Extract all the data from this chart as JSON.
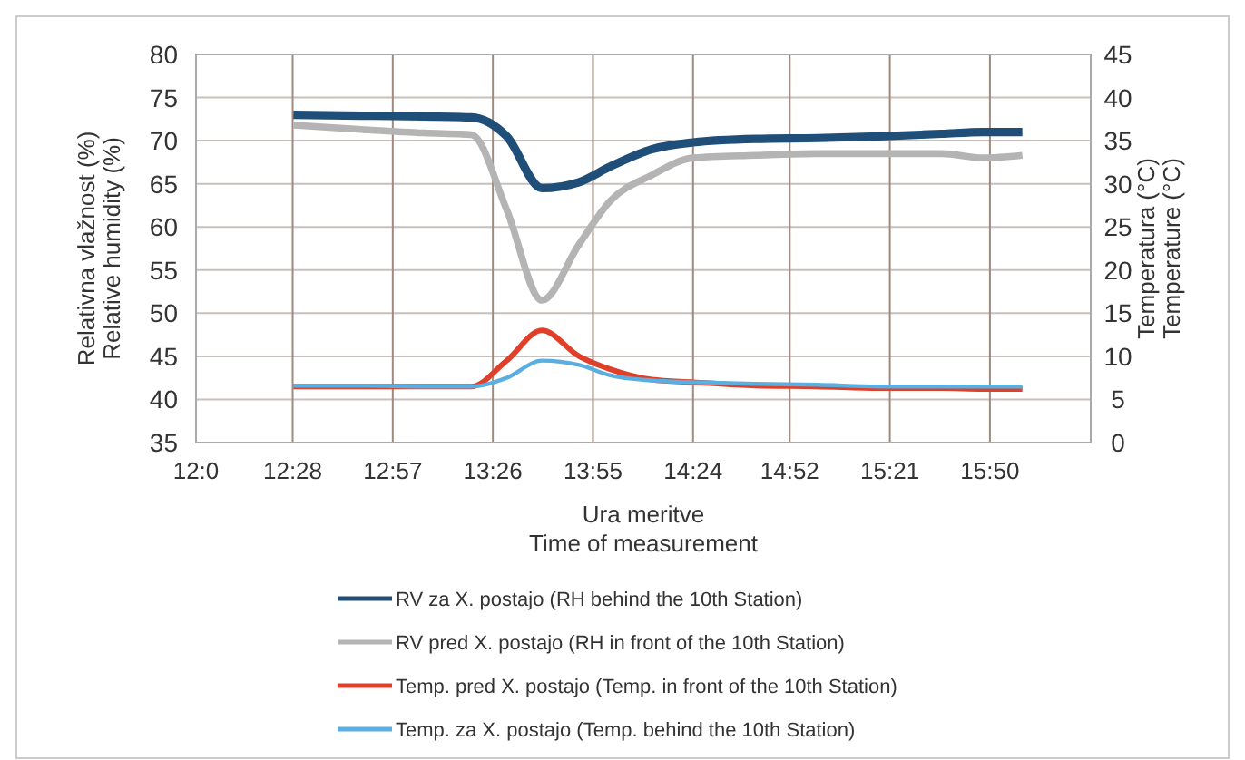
{
  "chart_data": {
    "type": "line",
    "xlabel": "Ura meritve\nTime of measurement",
    "ylabel": "Relativna vlažnost (%)\nRelative humidity (%)",
    "y2label": "Temperatura (°C)\nTemperature (°C)",
    "x": [
      12.47,
      12.8,
      13.1,
      13.33,
      13.5,
      13.67,
      13.85,
      14.0,
      14.2,
      14.4,
      14.7,
      15.0,
      15.3,
      15.6,
      15.8,
      15.99
    ],
    "xlim": [
      12,
      16.32
    ],
    "xticks": [
      {
        "value": 12,
        "label": "12:0"
      },
      {
        "value": 12.4667,
        "label": "12:28"
      },
      {
        "value": 12.95,
        "label": "12:57"
      },
      {
        "value": 13.4333,
        "label": "13:26"
      },
      {
        "value": 13.9167,
        "label": "13:55"
      },
      {
        "value": 14.4,
        "label": "14:24"
      },
      {
        "value": 14.8667,
        "label": "14:52"
      },
      {
        "value": 15.35,
        "label": "15:21"
      },
      {
        "value": 15.8333,
        "label": "15:50"
      }
    ],
    "ylim": [
      35,
      80
    ],
    "yticks": [
      35,
      40,
      45,
      50,
      55,
      60,
      65,
      70,
      75,
      80
    ],
    "y2lim": [
      0,
      45
    ],
    "y2ticks": [
      0,
      5,
      10,
      15,
      20,
      25,
      30,
      35,
      40,
      45
    ],
    "grid": true,
    "legend": "bottom",
    "marker": "none",
    "line_style": "solid",
    "series": [
      {
        "name": "RV za X. postajo (RH behind the 10th Station)",
        "color": "#1f4e79",
        "values": [
          73,
          72.9,
          72.8,
          72.7,
          70.5,
          64.5,
          65.2,
          67,
          69,
          69.8,
          70.2,
          70.3,
          70.5,
          70.8,
          71,
          71
        ]
      },
      {
        "name": "RV pred X. postajo (RH in front of the 10th Station)",
        "color": "#b4b4b4",
        "values": [
          71.8,
          71.3,
          70.9,
          70.7,
          62,
          51.5,
          58,
          63,
          66,
          68,
          68.3,
          68.5,
          68.5,
          68.5,
          68,
          68.3
        ]
      },
      {
        "name": "Temp. pred X. postajo (Temp. in front of the 10th Station)",
        "color": "#e0402a",
        "axis": "y2",
        "values": [
          6.5,
          6.5,
          6.5,
          6.5,
          9.5,
          13,
          10,
          8.5,
          7.3,
          7,
          6.6,
          6.5,
          6.3,
          6.3,
          6.2,
          6.2
        ]
      },
      {
        "name": "Temp. za X. postajo (Temp. behind the 10th Station)",
        "color": "#5aaee0",
        "axis": "y2",
        "values": [
          6.6,
          6.6,
          6.5,
          6.5,
          7.5,
          9.5,
          9,
          7.8,
          7.2,
          7,
          6.8,
          6.7,
          6.5,
          6.5,
          6.5,
          6.5
        ]
      }
    ]
  }
}
